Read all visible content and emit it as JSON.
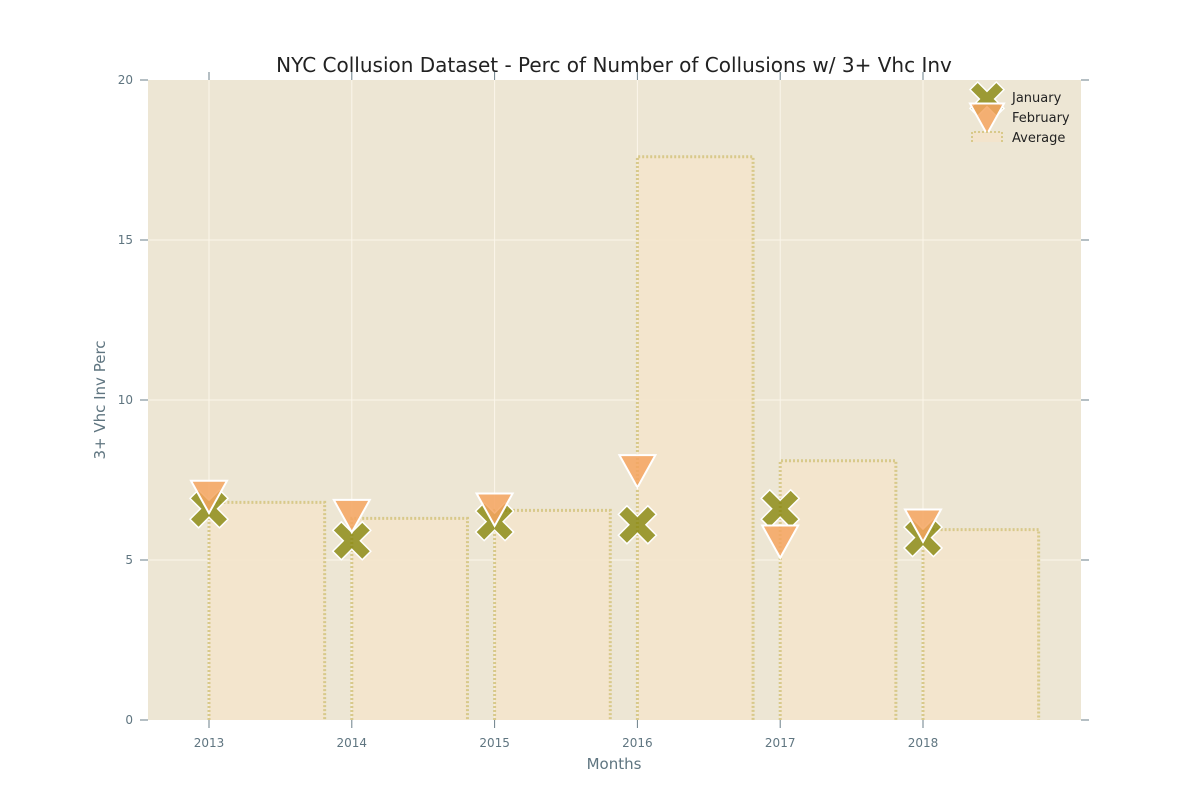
{
  "chart_data": {
    "type": "scatter",
    "title": "NYC Collusion Dataset - Perc of Number of Collusions w/ 3+ Vhc Inv",
    "xlabel": "Months",
    "ylabel": "3+ Vhc Inv Perc",
    "categories": [
      "2013",
      "2014",
      "2015",
      "2016",
      "2017",
      "2018"
    ],
    "ylim": [
      0,
      20
    ],
    "yticks": [
      0,
      5,
      10,
      15,
      20
    ],
    "grid": true,
    "legend_position": "top-right",
    "series": [
      {
        "name": "January",
        "marker": "x",
        "color": "#808000",
        "values": [
          6.6,
          5.6,
          6.2,
          6.1,
          6.6,
          5.7
        ]
      },
      {
        "name": "February",
        "marker": "triangle-down",
        "color": "#f4a460",
        "values": [
          7.0,
          6.4,
          6.6,
          7.8,
          5.6,
          6.1
        ]
      },
      {
        "name": "Average",
        "marker": "step-bar",
        "color": "#d8c98a",
        "values": [
          6.8,
          6.3,
          6.55,
          17.6,
          8.1,
          5.95
        ]
      }
    ],
    "colors": {
      "background": "#ede6d4",
      "bar_fill": "#f3e4cc",
      "grid": "#fbf6ea",
      "axis_text": "#5f7580"
    }
  }
}
